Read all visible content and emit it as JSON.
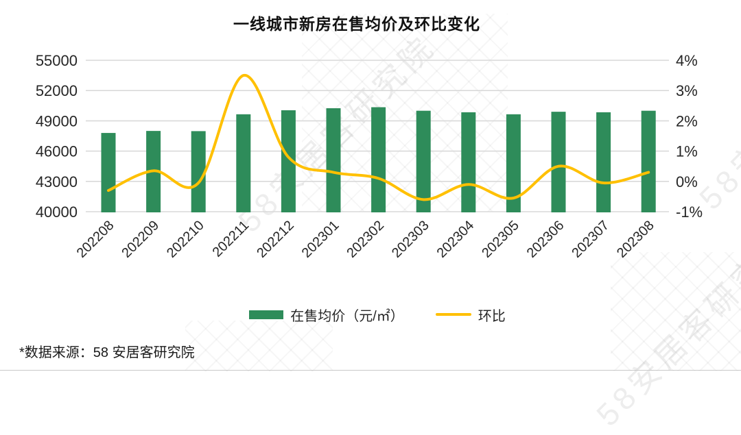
{
  "title": "一线城市新房在售均价及环比变化",
  "source_note": "*数据来源：58 安居客研究院",
  "watermark": "58安居客研究院",
  "colors": {
    "bar": "#2E8C5A",
    "line": "#FFC000",
    "grid": "#D9D9D9",
    "axis_text": "#262626",
    "title_text": "#111111"
  },
  "legend": [
    {
      "label": "在售均价（元/㎡）",
      "type": "bar"
    },
    {
      "label": "环比",
      "type": "line"
    }
  ],
  "chart_data": {
    "type": "bar",
    "subtype": "combo-bar-line",
    "title": "一线城市新房在售均价及环比变化",
    "categories": [
      "202208",
      "202209",
      "202210",
      "202211",
      "202212",
      "202301",
      "202302",
      "202303",
      "202304",
      "202305",
      "202306",
      "202307",
      "202308"
    ],
    "series": [
      {
        "name": "在售均价（元/㎡）",
        "type": "bar",
        "axis": "left",
        "values": [
          47800,
          48000,
          47980,
          49650,
          50050,
          50250,
          50350,
          50000,
          49850,
          49650,
          49900,
          49850,
          50000
        ]
      },
      {
        "name": "环比",
        "type": "line",
        "axis": "right",
        "values": [
          -0.3,
          0.35,
          -0.05,
          3.5,
          0.8,
          0.3,
          0.1,
          -0.6,
          -0.1,
          -0.55,
          0.5,
          -0.05,
          0.3
        ]
      }
    ],
    "left_axis": {
      "min": 40000,
      "max": 55000,
      "tick_labels": [
        "55000",
        "52000",
        "49000",
        "46000",
        "43000",
        "40000"
      ]
    },
    "right_axis": {
      "min": -1,
      "max": 4,
      "tick_labels": [
        "4%",
        "3%",
        "2%",
        "1%",
        "0%",
        "-1%"
      ]
    },
    "grid": true,
    "legend_position": "bottom"
  }
}
